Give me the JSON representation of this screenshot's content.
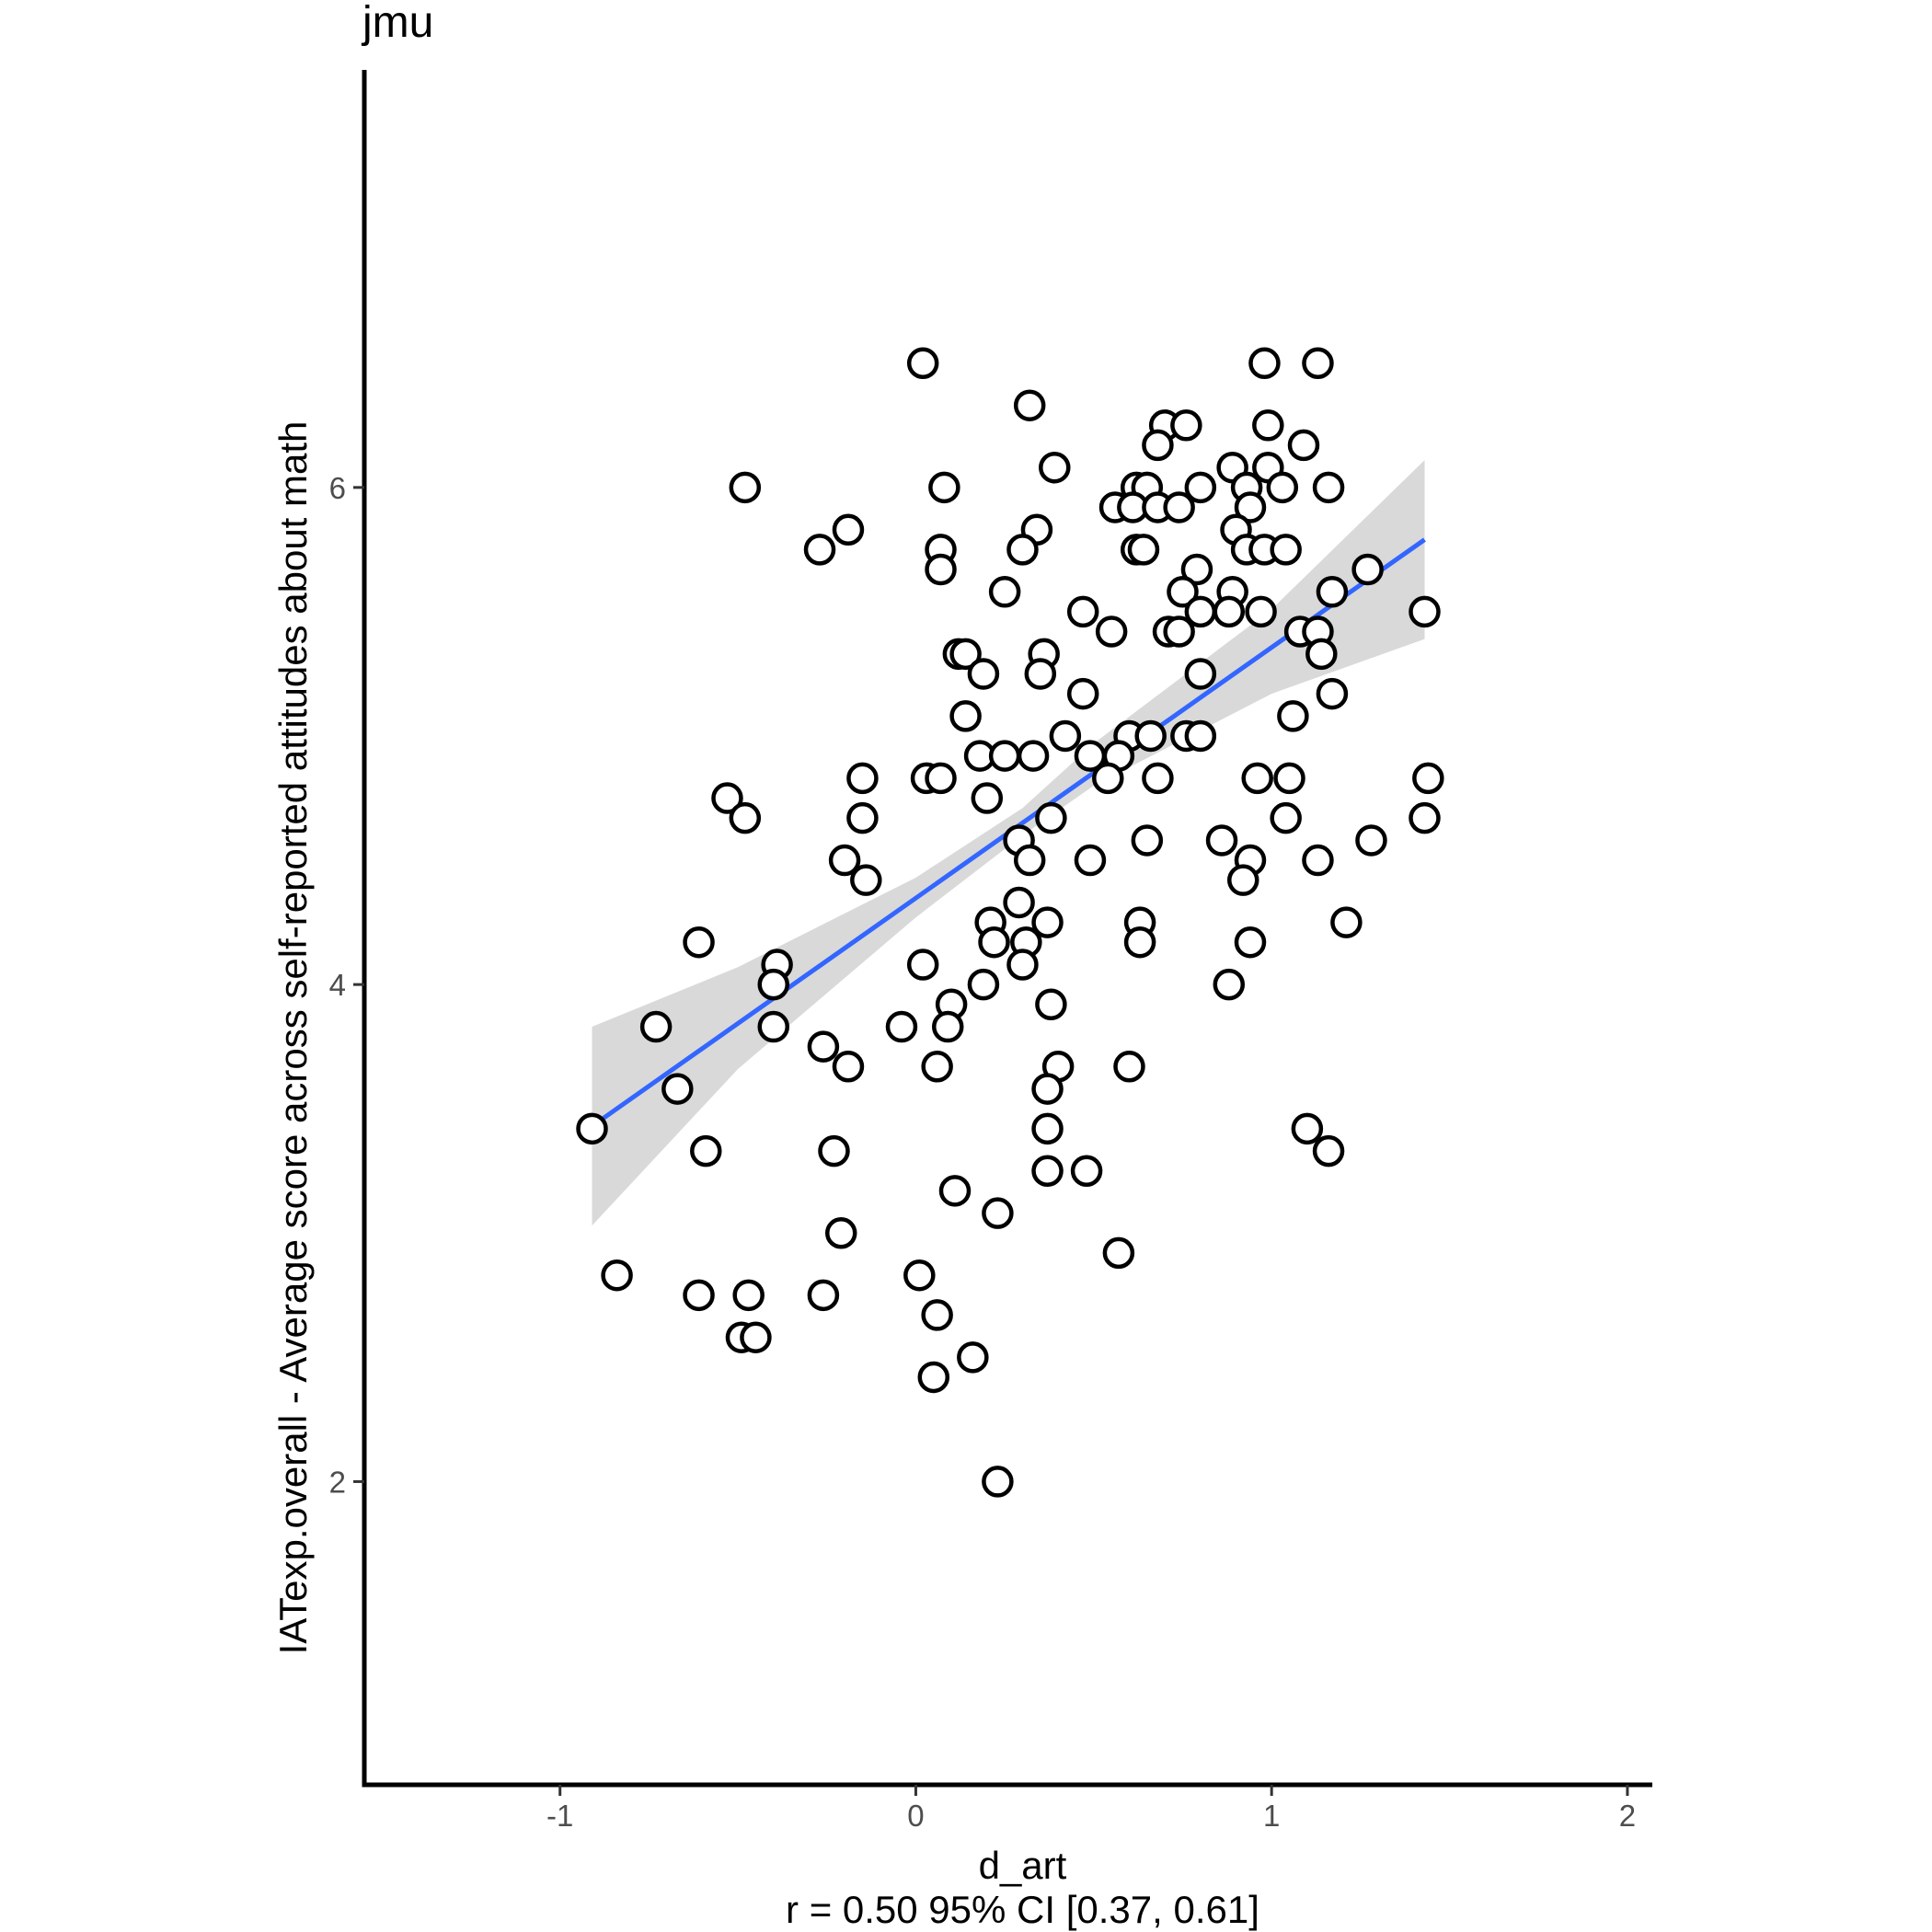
{
  "chart_data": {
    "type": "scatter",
    "title": "jmu",
    "xlabel": "d_art",
    "ylabel": "IATexp.overall - Average score across self-reported attitudes about math",
    "caption": "r = 0.50 95% CI [0.37, 0.61]",
    "xlim": [
      -1.55,
      2.07
    ],
    "ylim": [
      0.78,
      7.68
    ],
    "x_ticks": [
      -1,
      0,
      1,
      2
    ],
    "x_tick_labels": [
      "-1",
      "0",
      "1",
      "2"
    ],
    "y_ticks": [
      2,
      4,
      6
    ],
    "y_tick_labels": [
      "2",
      "4",
      "6"
    ],
    "grid": false,
    "points_style": {
      "fill": "#ffffff",
      "stroke": "#000000"
    },
    "fit_line": {
      "color": "#3366ff",
      "x": [
        -0.91,
        1.43
      ],
      "y": [
        3.43,
        5.79
      ]
    },
    "confidence_band": {
      "color": "#d9d9d9",
      "x": [
        -0.91,
        -0.5,
        0.0,
        0.3,
        0.5,
        1.0,
        1.43
      ],
      "lower": [
        3.03,
        3.66,
        4.27,
        4.6,
        4.8,
        5.17,
        5.39
      ],
      "upper": [
        3.83,
        4.07,
        4.43,
        4.71,
        4.97,
        5.51,
        6.11
      ]
    },
    "points": [
      [
        0.02,
        6.5
      ],
      [
        0.98,
        6.5
      ],
      [
        1.13,
        6.5
      ],
      [
        0.32,
        6.33
      ],
      [
        0.7,
        6.25
      ],
      [
        0.76,
        6.25
      ],
      [
        0.99,
        6.25
      ],
      [
        0.68,
        6.17
      ],
      [
        1.09,
        6.17
      ],
      [
        0.39,
        6.08
      ],
      [
        0.89,
        6.08
      ],
      [
        0.99,
        6.08
      ],
      [
        -0.48,
        6.0
      ],
      [
        0.08,
        6.0
      ],
      [
        0.62,
        6.0
      ],
      [
        0.65,
        6.0
      ],
      [
        0.8,
        6.0
      ],
      [
        0.93,
        6.0
      ],
      [
        1.03,
        6.0
      ],
      [
        1.16,
        6.0
      ],
      [
        0.56,
        5.92
      ],
      [
        0.61,
        5.92
      ],
      [
        0.68,
        5.92
      ],
      [
        0.74,
        5.92
      ],
      [
        0.94,
        5.92
      ],
      [
        -0.19,
        5.83
      ],
      [
        0.34,
        5.83
      ],
      [
        0.9,
        5.83
      ],
      [
        -0.27,
        5.75
      ],
      [
        0.07,
        5.75
      ],
      [
        0.3,
        5.75
      ],
      [
        0.62,
        5.75
      ],
      [
        0.64,
        5.75
      ],
      [
        0.93,
        5.75
      ],
      [
        0.98,
        5.75
      ],
      [
        1.04,
        5.75
      ],
      [
        0.07,
        5.67
      ],
      [
        0.79,
        5.67
      ],
      [
        1.27,
        5.67
      ],
      [
        0.25,
        5.58
      ],
      [
        0.75,
        5.58
      ],
      [
        0.89,
        5.58
      ],
      [
        1.17,
        5.58
      ],
      [
        0.47,
        5.5
      ],
      [
        0.8,
        5.5
      ],
      [
        0.88,
        5.5
      ],
      [
        0.97,
        5.5
      ],
      [
        1.43,
        5.5
      ],
      [
        0.55,
        5.42
      ],
      [
        0.71,
        5.42
      ],
      [
        0.74,
        5.42
      ],
      [
        1.08,
        5.42
      ],
      [
        1.13,
        5.42
      ],
      [
        0.12,
        5.33
      ],
      [
        0.14,
        5.33
      ],
      [
        0.36,
        5.33
      ],
      [
        1.14,
        5.33
      ],
      [
        0.19,
        5.25
      ],
      [
        0.35,
        5.25
      ],
      [
        0.8,
        5.25
      ],
      [
        0.47,
        5.17
      ],
      [
        1.17,
        5.17
      ],
      [
        0.14,
        5.08
      ],
      [
        1.06,
        5.08
      ],
      [
        0.42,
        5.0
      ],
      [
        0.6,
        5.0
      ],
      [
        0.66,
        5.0
      ],
      [
        0.76,
        5.0
      ],
      [
        0.8,
        5.0
      ],
      [
        0.18,
        4.92
      ],
      [
        0.25,
        4.92
      ],
      [
        0.33,
        4.92
      ],
      [
        0.49,
        4.92
      ],
      [
        0.57,
        4.92
      ],
      [
        -0.15,
        4.83
      ],
      [
        0.03,
        4.83
      ],
      [
        0.07,
        4.83
      ],
      [
        0.54,
        4.83
      ],
      [
        0.68,
        4.83
      ],
      [
        0.96,
        4.83
      ],
      [
        1.05,
        4.83
      ],
      [
        1.44,
        4.83
      ],
      [
        -0.53,
        4.75
      ],
      [
        0.2,
        4.75
      ],
      [
        -0.48,
        4.67
      ],
      [
        -0.15,
        4.67
      ],
      [
        0.38,
        4.67
      ],
      [
        1.04,
        4.67
      ],
      [
        1.43,
        4.67
      ],
      [
        0.29,
        4.58
      ],
      [
        0.65,
        4.58
      ],
      [
        0.86,
        4.58
      ],
      [
        1.28,
        4.58
      ],
      [
        -0.2,
        4.5
      ],
      [
        0.32,
        4.5
      ],
      [
        0.49,
        4.5
      ],
      [
        0.94,
        4.5
      ],
      [
        1.13,
        4.5
      ],
      [
        -0.14,
        4.42
      ],
      [
        0.92,
        4.42
      ],
      [
        0.29,
        4.33
      ],
      [
        0.21,
        4.25
      ],
      [
        0.37,
        4.25
      ],
      [
        0.63,
        4.25
      ],
      [
        1.21,
        4.25
      ],
      [
        -0.61,
        4.17
      ],
      [
        0.22,
        4.17
      ],
      [
        0.31,
        4.17
      ],
      [
        0.63,
        4.17
      ],
      [
        0.94,
        4.17
      ],
      [
        -0.39,
        4.08
      ],
      [
        0.02,
        4.08
      ],
      [
        0.3,
        4.08
      ],
      [
        -0.4,
        4.0
      ],
      [
        0.19,
        4.0
      ],
      [
        0.88,
        4.0
      ],
      [
        0.1,
        3.92
      ],
      [
        0.38,
        3.92
      ],
      [
        -0.73,
        3.83
      ],
      [
        -0.4,
        3.83
      ],
      [
        -0.04,
        3.83
      ],
      [
        0.09,
        3.83
      ],
      [
        -0.26,
        3.75
      ],
      [
        -0.19,
        3.67
      ],
      [
        0.06,
        3.67
      ],
      [
        0.4,
        3.67
      ],
      [
        0.6,
        3.67
      ],
      [
        -0.67,
        3.58
      ],
      [
        0.37,
        3.58
      ],
      [
        -0.91,
        3.42
      ],
      [
        0.37,
        3.42
      ],
      [
        1.1,
        3.42
      ],
      [
        -0.59,
        3.33
      ],
      [
        -0.23,
        3.33
      ],
      [
        1.16,
        3.33
      ],
      [
        0.37,
        3.25
      ],
      [
        0.48,
        3.25
      ],
      [
        0.11,
        3.17
      ],
      [
        0.23,
        3.08
      ],
      [
        -0.21,
        3.0
      ],
      [
        0.57,
        2.92
      ],
      [
        -0.84,
        2.83
      ],
      [
        0.01,
        2.83
      ],
      [
        -0.61,
        2.75
      ],
      [
        -0.47,
        2.75
      ],
      [
        -0.26,
        2.75
      ],
      [
        0.06,
        2.67
      ],
      [
        -0.49,
        2.58
      ],
      [
        -0.45,
        2.58
      ],
      [
        0.16,
        2.5
      ],
      [
        0.05,
        2.42
      ],
      [
        0.23,
        2.0
      ]
    ]
  }
}
